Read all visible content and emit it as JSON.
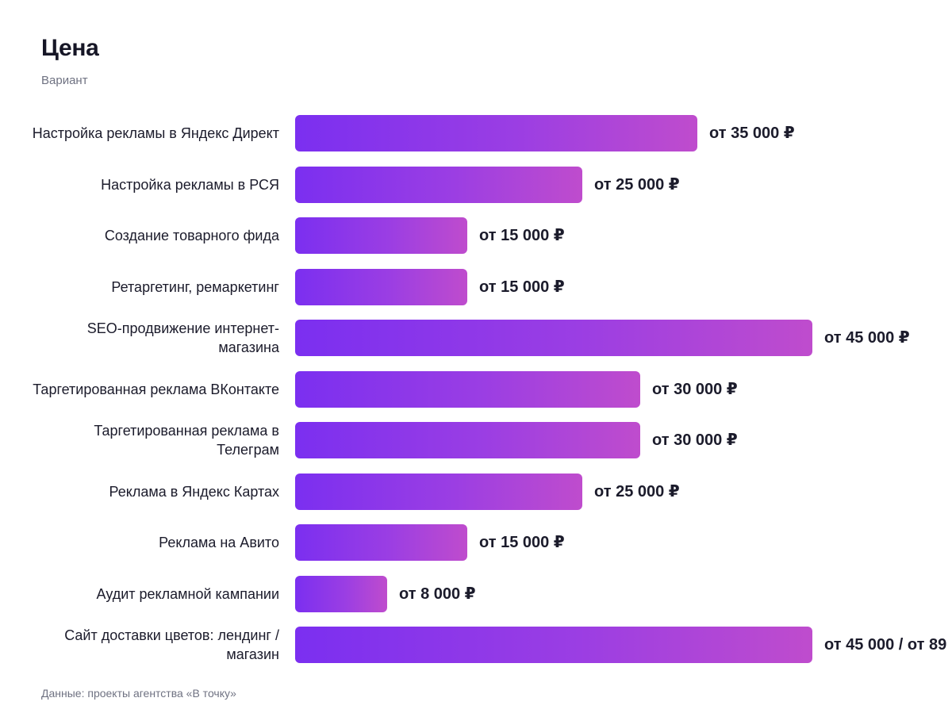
{
  "header": {
    "title": "Цена",
    "subtitle": "Вариант"
  },
  "footnote": "Данные: проекты агентства «В точку»",
  "chart_data": {
    "type": "bar",
    "orientation": "horizontal",
    "title": "Цена",
    "subtitle": "Вариант",
    "xlim": [
      0,
      45000
    ],
    "bar_color_start": "#7b2ff0",
    "bar_color_end": "#bf4ccd",
    "categories": [
      "Настройка рекламы в Яндекс Директ",
      "Настройка рекламы в РСЯ",
      "Создание товарного фида",
      "Ретаргетинг, ремаркетинг",
      "SEO-продвижение интернет-магазина",
      "Таргетированная реклама ВКонтакте",
      "Таргетированная реклама в Телеграм",
      "Реклама в Яндекс Картах",
      "Реклама на Авито",
      "Аудит рекламной кампании",
      "Сайт доставки цветов: лендинг / магазин"
    ],
    "values": [
      35000,
      25000,
      15000,
      15000,
      45000,
      30000,
      30000,
      25000,
      15000,
      8000,
      45000
    ],
    "labels": [
      "от 35 000 ₽",
      "от 25 000 ₽",
      "от 15 000 ₽",
      "от 15 000 ₽",
      "от 45 000 ₽",
      "от 30 000 ₽",
      "от 30 000 ₽",
      "от 25 000 ₽",
      "от 15 000 ₽",
      "от 8 000 ₽",
      "от 45 000 / от 89"
    ]
  }
}
